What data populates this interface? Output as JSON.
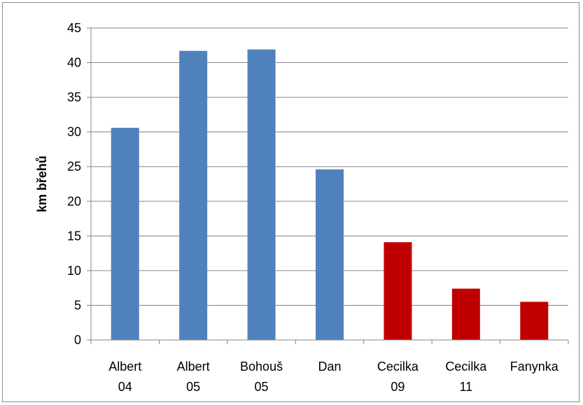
{
  "chart_data": {
    "type": "bar",
    "title": "",
    "xlabel": "",
    "ylabel": "km břehů",
    "ylim": [
      0,
      45
    ],
    "yticks": [
      0,
      5,
      10,
      15,
      20,
      25,
      30,
      35,
      40,
      45
    ],
    "grid": true,
    "legend": "none",
    "categories": [
      [
        "Albert",
        "04"
      ],
      [
        "Albert",
        "05"
      ],
      [
        "Bohouš",
        "05"
      ],
      [
        "Dan",
        ""
      ],
      [
        "Cecilka",
        "09"
      ],
      [
        "Cecilka",
        "11"
      ],
      [
        "Fanynka",
        ""
      ]
    ],
    "values": [
      30.6,
      41.7,
      41.9,
      24.6,
      14.1,
      7.4,
      5.5
    ],
    "bar_colors": [
      "#4f81bd",
      "#4f81bd",
      "#4f81bd",
      "#4f81bd",
      "#c00000",
      "#c00000",
      "#c00000"
    ]
  }
}
